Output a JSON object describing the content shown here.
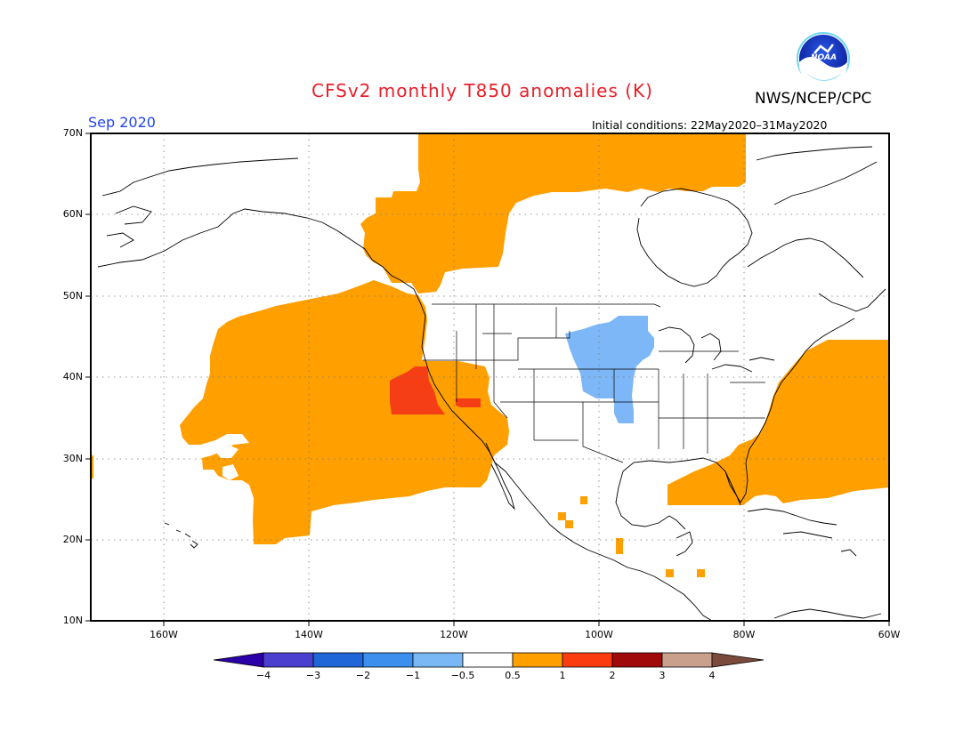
{
  "header": {
    "title": "CFSv2 monthly T850 anomalies (K)",
    "organization": "NWS/NCEP/CPC",
    "logo_text": "NOAA",
    "valid_month": "Sep 2020",
    "initial_conditions": "Initial conditions: 22May2020–31May2020"
  },
  "map": {
    "lon_range": [
      -170,
      -60
    ],
    "lat_range": [
      10,
      70
    ],
    "lat_labels": [
      "70N",
      "60N",
      "50N",
      "40N",
      "30N",
      "20N",
      "10N"
    ],
    "lon_labels": [
      "160W",
      "140W",
      "120W",
      "100W",
      "80W",
      "60W"
    ]
  },
  "colorbar": {
    "labels": [
      "−4",
      "−3",
      "−2",
      "−1",
      "−0.5",
      "0.5",
      "1",
      "2",
      "3",
      "4"
    ],
    "colors": [
      "#2a00a8",
      "#4b3fd0",
      "#1f66d8",
      "#3d8fee",
      "#7ab8f5",
      "#ffffff",
      "#ff9f00",
      "#fa3c0e",
      "#a10a0a",
      "#c9a08c",
      "#7a4a3c"
    ]
  },
  "colors": {
    "orange": "#ff9f00",
    "red": "#f53e16",
    "blue": "#7db7f7",
    "title": "#e8202a",
    "month": "#2244ee"
  }
}
